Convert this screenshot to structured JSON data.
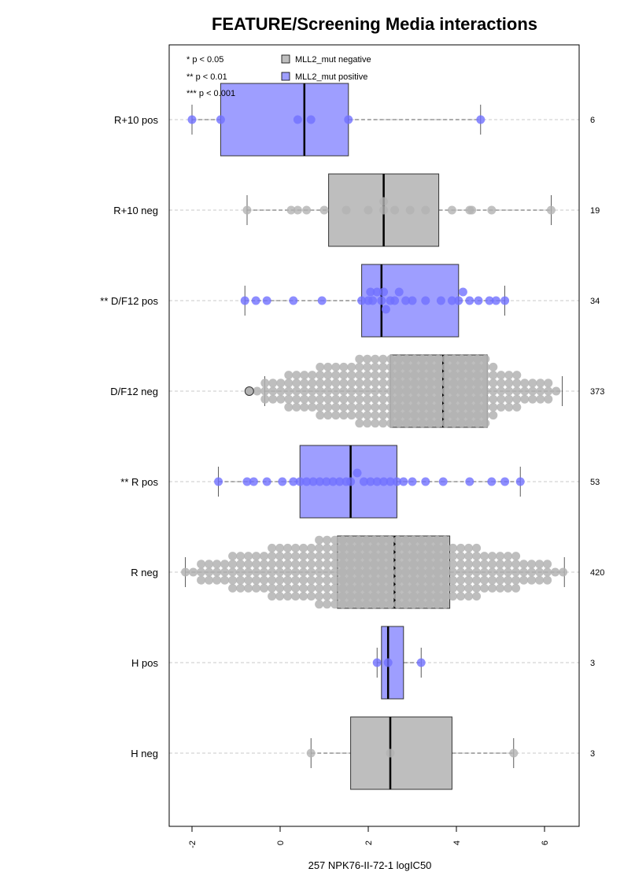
{
  "chart_data": {
    "type": "boxplot",
    "title": "FEATURE/Screening Media interactions",
    "xlabel": "257 NPK76-II-72-1 logIC50",
    "xlim": [
      -2.2,
      6.8
    ],
    "xticks": [
      -2,
      0,
      2,
      4,
      6
    ],
    "tick_labels": [
      "-2",
      "0",
      "2",
      "4",
      "6"
    ],
    "significance_legend": [
      "* p < 0.05",
      "** p < 0.01",
      "*** p < 0.001"
    ],
    "legend": [
      {
        "label": "MLL2_mut negative",
        "color": "#bebebe"
      },
      {
        "label": "MLL2_mut positive",
        "color": "#9e9eff"
      }
    ],
    "colors": {
      "negative_box": "#bebebe",
      "positive_box": "#9e9eff",
      "negative_point": "#b3b3b3",
      "positive_point": "#7070ff",
      "grid": "#c8c8c8"
    },
    "groups": [
      {
        "label": "R+10 pos",
        "n": "6",
        "status": "positive",
        "stats": {
          "lw": -2.0,
          "q1": -1.35,
          "med": 0.55,
          "q3": 1.55,
          "uw": 4.55
        },
        "points": [
          -2.0,
          -1.35,
          0.4,
          0.7,
          1.55,
          4.55
        ]
      },
      {
        "label": "R+10 neg",
        "n": "19",
        "status": "negative",
        "stats": {
          "lw": -0.75,
          "q1": 1.1,
          "med": 2.35,
          "q3": 3.6,
          "uw": 6.15
        },
        "points": [
          -0.75,
          0.25,
          0.4,
          0.6,
          1.0,
          1.5,
          2.0,
          2.35,
          2.35,
          2.6,
          2.95,
          3.3,
          3.9,
          4.3,
          4.35,
          4.8,
          6.15
        ]
      },
      {
        "label": "** D/F12 pos",
        "n": "34",
        "status": "positive",
        "stats": {
          "lw": -0.8,
          "q1": 1.85,
          "med": 2.3,
          "q3": 4.05,
          "uw": 5.1
        },
        "points": [
          -0.8,
          -0.55,
          -0.3,
          0.3,
          0.95,
          1.85,
          2.0,
          2.05,
          2.1,
          2.2,
          2.3,
          2.35,
          2.4,
          2.5,
          2.6,
          2.7,
          2.85,
          3.0,
          3.3,
          3.65,
          3.9,
          4.05,
          4.15,
          4.3,
          4.5,
          4.75,
          4.9,
          5.1
        ]
      },
      {
        "label": "D/F12 neg",
        "n": "373",
        "status": "negative",
        "stats": {
          "lw": -0.35,
          "q1": 2.5,
          "med": 3.7,
          "q3": 4.7,
          "uw": 6.4
        },
        "points": [
          -0.7,
          -0.35,
          -0.1,
          0.3,
          0.5,
          0.8,
          1.0,
          1.2,
          1.4,
          1.6,
          1.75,
          1.9,
          2.05,
          2.2,
          2.35,
          2.5,
          2.65,
          2.8,
          2.95,
          3.1,
          3.25,
          3.4,
          3.55,
          3.7,
          3.85,
          4.0,
          4.15,
          4.3,
          4.45,
          4.6,
          4.75,
          4.9,
          5.05,
          5.2,
          5.4,
          5.6,
          5.8,
          6.0,
          6.2,
          6.4
        ]
      },
      {
        "label": "** R pos",
        "n": "53",
        "status": "positive",
        "stats": {
          "lw": -1.4,
          "q1": 0.45,
          "med": 1.6,
          "q3": 2.65,
          "uw": 5.45
        },
        "points": [
          -1.4,
          -0.75,
          -0.6,
          -0.3,
          0.05,
          0.3,
          0.45,
          0.6,
          0.75,
          0.9,
          1.05,
          1.2,
          1.35,
          1.5,
          1.6,
          1.75,
          1.9,
          2.05,
          2.2,
          2.35,
          2.5,
          2.65,
          2.8,
          3.0,
          3.3,
          3.7,
          4.3,
          4.8,
          5.1,
          5.45
        ]
      },
      {
        "label": "R neg",
        "n": "420",
        "status": "negative",
        "stats": {
          "lw": -2.15,
          "q1": 1.3,
          "med": 2.6,
          "q3": 3.85,
          "uw": 6.45
        },
        "points": [
          -2.15,
          -1.9,
          -1.6,
          -1.3,
          -1.1,
          -0.9,
          -0.7,
          -0.5,
          -0.3,
          -0.1,
          0.1,
          0.3,
          0.5,
          0.7,
          0.9,
          1.1,
          1.3,
          1.5,
          1.7,
          1.9,
          2.1,
          2.3,
          2.5,
          2.7,
          2.9,
          3.1,
          3.3,
          3.5,
          3.7,
          3.9,
          4.1,
          4.3,
          4.5,
          4.7,
          4.9,
          5.1,
          5.3,
          5.5,
          5.7,
          5.9,
          6.1,
          6.45
        ]
      },
      {
        "label": "H pos",
        "n": "3",
        "status": "positive",
        "stats": {
          "lw": 2.2,
          "q1": 2.3,
          "med": 2.45,
          "q3": 2.8,
          "uw": 3.2
        },
        "points": [
          2.2,
          2.45,
          3.2
        ]
      },
      {
        "label": "H neg",
        "n": "3",
        "status": "negative",
        "stats": {
          "lw": 0.7,
          "q1": 1.6,
          "med": 2.5,
          "q3": 3.9,
          "uw": 5.3
        },
        "points": [
          0.7,
          2.5,
          5.3
        ]
      }
    ]
  }
}
